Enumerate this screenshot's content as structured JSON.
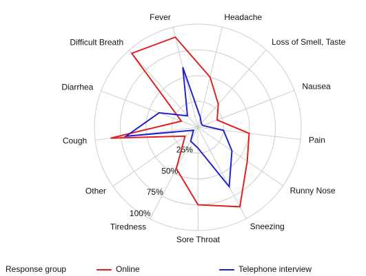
{
  "chart_data": {
    "type": "radar",
    "categories": [
      "Fever",
      "Headache",
      "Loss of Smell, Taste",
      "Nausea",
      "Pain",
      "Runny Nose",
      "Sneezing",
      "Sore Throat",
      "Tiredness",
      "Other",
      "Cough",
      "Diarrhea",
      "Difficult Breath"
    ],
    "series": [
      {
        "name": "Online",
        "color": "#e02020",
        "values": [
          90,
          50,
          30,
          20,
          50,
          58,
          87,
          75,
          45,
          15,
          85,
          17,
          96
        ]
      },
      {
        "name": "Telephone interview",
        "color": "#2020d0",
        "values": [
          60,
          10,
          5,
          5,
          25,
          40,
          65,
          20,
          15,
          5,
          70,
          40,
          15
        ]
      }
    ],
    "ylim": [
      0,
      100
    ],
    "yticks": [
      {
        "value": 25,
        "label": "25%"
      },
      {
        "value": 50,
        "label": "50%"
      },
      {
        "value": 75,
        "label": "75%"
      },
      {
        "value": 100,
        "label": "100%"
      }
    ],
    "legend_title": "Response group",
    "legend": "bottom",
    "grid": true
  }
}
